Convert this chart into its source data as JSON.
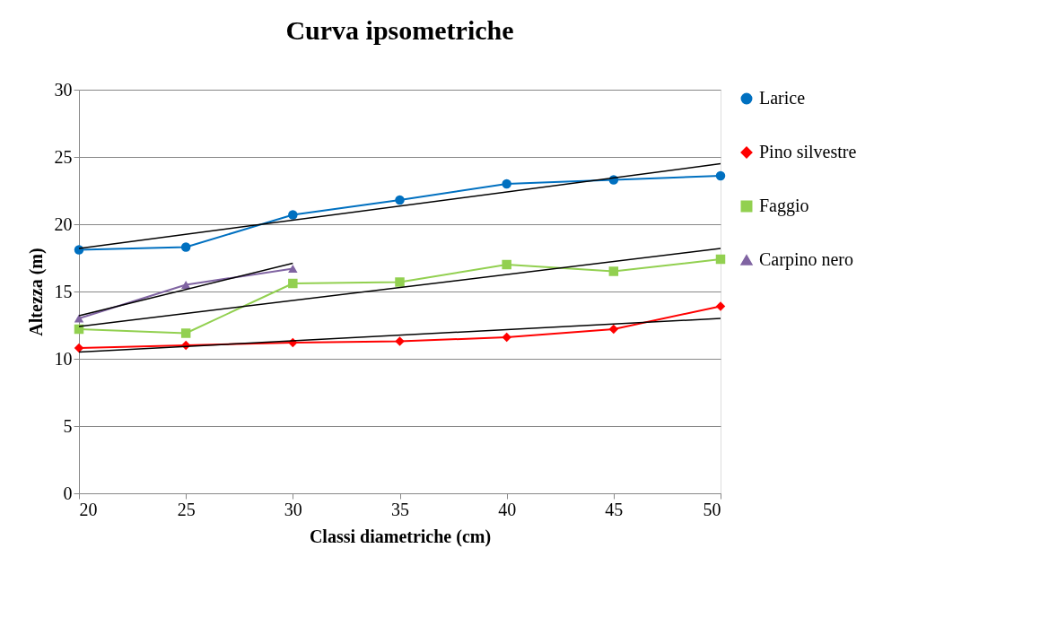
{
  "chart_data": {
    "type": "line",
    "title": "Curva ipsometriche",
    "xlabel": "Classi diametriche (cm)",
    "ylabel": "Altezza (m)",
    "x": [
      20,
      25,
      30,
      35,
      40,
      45,
      50
    ],
    "xlim": [
      20,
      50
    ],
    "xticks": [
      20,
      25,
      30,
      35,
      40,
      45,
      50
    ],
    "ylim": [
      0,
      30
    ],
    "yticks": [
      0,
      5,
      10,
      15,
      20,
      25,
      30
    ],
    "grid": "y",
    "legend": "right",
    "line_style": "solid",
    "series": [
      {
        "name": "Larice",
        "color": "#0070c0",
        "marker": "circle",
        "values": [
          18.1,
          18.3,
          20.7,
          21.8,
          23.0,
          23.3,
          23.6
        ]
      },
      {
        "name": "Pino silvestre",
        "color": "#ff0000",
        "marker": "diamond",
        "values": [
          10.8,
          11.0,
          11.2,
          11.3,
          11.6,
          12.2,
          13.9
        ]
      },
      {
        "name": "Faggio",
        "color": "#92d050",
        "marker": "square",
        "values": [
          12.2,
          11.9,
          15.6,
          15.7,
          17.0,
          16.5,
          17.4
        ]
      },
      {
        "name": "Carpino nero",
        "color": "#8064a2",
        "marker": "triangle",
        "x": [
          20,
          25,
          30
        ],
        "values": [
          13.0,
          15.5,
          16.7
        ]
      },
      {
        "type": "line",
        "color": "#000000",
        "marker": "none",
        "x": [
          20,
          50
        ],
        "values": [
          18.2,
          24.5
        ]
      },
      {
        "type": "line",
        "color": "#000000",
        "marker": "none",
        "x": [
          20,
          50
        ],
        "values": [
          10.5,
          13.0
        ]
      },
      {
        "type": "line",
        "color": "#000000",
        "marker": "none",
        "x": [
          20,
          50
        ],
        "values": [
          12.4,
          18.2
        ]
      },
      {
        "type": "line",
        "color": "#000000",
        "marker": "none",
        "x": [
          20,
          30
        ],
        "values": [
          13.2,
          17.1
        ]
      }
    ]
  }
}
